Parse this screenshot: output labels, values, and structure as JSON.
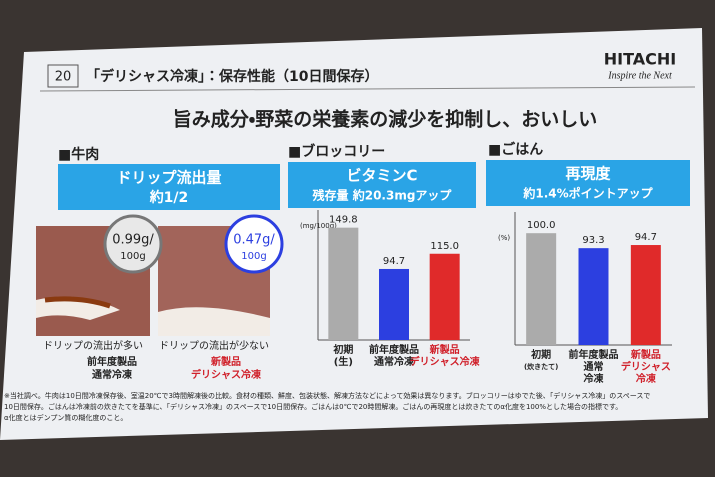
{
  "header": {
    "number": "20",
    "title": "「デリシャス冷凍」：保存性能（10日間保存）",
    "logo": "HITACHI",
    "tagline": "Inspire the Next"
  },
  "headline": "旨み成分・野菜の栄養素の減少を抑制し、おいしい",
  "sections": [
    {
      "heading": "■牛肉",
      "box_title": "ドリップ流出量",
      "box_sub": "約1/2",
      "items": [
        {
          "bubble": [
            "0.99g/",
            "100g"
          ],
          "caption": "ドリップの流出が多い",
          "label": [
            "前年度製品",
            "通常冷凍"
          ]
        },
        {
          "bubble": [
            "0.47g/",
            "100g"
          ],
          "caption": "ドリップの流出が少ない",
          "label": [
            "新製品",
            "デリシャス冷凍"
          ]
        }
      ]
    },
    {
      "heading": "■ブロッコリー",
      "box_title": "ビタミンC",
      "box_sub": "残存量 約20.3mgアップ"
    },
    {
      "heading": "■ごはん",
      "box_title": "再現度",
      "box_sub": "約1.4%ポイントアップ"
    }
  ],
  "chart_data": [
    {
      "type": "bar",
      "unit": "(mg/100g)",
      "categories": [
        [
          "初期",
          "(生)"
        ],
        [
          "前年度製品",
          "通常冷凍"
        ],
        [
          "新製品",
          "デリシャス冷凍"
        ]
      ],
      "values": [
        149.8,
        94.7,
        115.0
      ],
      "value_labels": [
        "149.8",
        "94.7",
        "115.0"
      ],
      "colors": [
        "#ababab",
        "#2c3fe0",
        "#e02a2a"
      ],
      "label_colors": [
        "#222222",
        "#222222",
        "#d0202a"
      ],
      "ylim": [
        0,
        160
      ]
    },
    {
      "type": "bar",
      "unit": "(%)",
      "categories": [
        [
          "初期",
          "(炊きたて)"
        ],
        [
          "前年度製品",
          "通常",
          "冷凍"
        ],
        [
          "新製品",
          "デリシャス",
          "冷凍"
        ]
      ],
      "values": [
        100.0,
        93.3,
        94.7
      ],
      "value_labels": [
        "100.0",
        "93.3",
        "94.7"
      ],
      "colors": [
        "#ababab",
        "#2c3fe0",
        "#e02a2a"
      ],
      "label_colors": [
        "#222222",
        "#222222",
        "#d0202a"
      ],
      "ylim": [
        50,
        105
      ]
    }
  ],
  "footnote": [
    "※当社調べ。牛肉は10日間冷凍保存後、室温20℃で3時間解凍後の比較。食材の種類、鮮度、包装状態、解凍方法などによって効果は異なります。ブロッコリーはゆでた後、「デリシャス冷凍」のスペースで",
    "10日間保存。ごはんは冷凍前の炊きたてを基準に、「デリシャス冷凍」のスペースで10日間保存。ごはんは0℃で20時間解凍。ごはんの再現度とは炊きたてのα化度を100%とした場合の指標です。",
    "α化度とはデンプン質の糊化度のこと。"
  ]
}
